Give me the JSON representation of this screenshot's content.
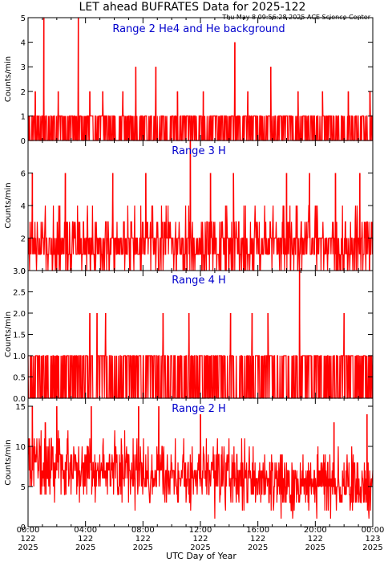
{
  "figure": {
    "title": "LET ahead BUFRATES Data for 2025-122",
    "stamp": "Thu May  8 09:56:28 2025 ACE Science Center",
    "xlabel": "UTC Day of Year",
    "line_color": "#ff0000",
    "label_color": "#0000cc",
    "x_ticks": [
      {
        "time": "00:00",
        "day": "122",
        "year": "2025"
      },
      {
        "time": "04:00",
        "day": "122",
        "year": "2025"
      },
      {
        "time": "08:00",
        "day": "122",
        "year": "2025"
      },
      {
        "time": "12:00",
        "day": "122",
        "year": "2025"
      },
      {
        "time": "16:00",
        "day": "122",
        "year": "2025"
      },
      {
        "time": "20:00",
        "day": "122",
        "year": "2025"
      },
      {
        "time": "00:00",
        "day": "123",
        "year": "2025"
      }
    ]
  },
  "chart_data": [
    {
      "type": "line",
      "panel_label": "Range 2 He4 and He background",
      "ylabel": "Counts/min",
      "ylim": [
        0,
        5
      ],
      "yticks": [
        "0",
        "1",
        "2",
        "3",
        "4",
        "5"
      ],
      "x_unit": "hours from 2025-122 00:00 UTC",
      "xlim": [
        0,
        24
      ],
      "baseline": 1,
      "spikes": [
        [
          1.1,
          5
        ],
        [
          3.5,
          5
        ],
        [
          14.4,
          4
        ],
        [
          7.5,
          3
        ],
        [
          8.9,
          3
        ],
        [
          16.9,
          3
        ],
        [
          0.5,
          2
        ],
        [
          2.1,
          2
        ],
        [
          4.3,
          2
        ],
        [
          5.2,
          2
        ],
        [
          6.6,
          2
        ],
        [
          10.4,
          2
        ],
        [
          12.2,
          2
        ],
        [
          15.3,
          2
        ],
        [
          18.8,
          2
        ],
        [
          20.5,
          2
        ],
        [
          22.3,
          2
        ],
        [
          23.8,
          2
        ]
      ]
    },
    {
      "type": "line",
      "panel_label": "Range 3 H",
      "ylabel": "Counts/min",
      "ylim": [
        0,
        8
      ],
      "yticks": [
        "0",
        "2",
        "4",
        "6"
      ],
      "x_unit": "hours from 2025-122 00:00 UTC",
      "xlim": [
        0,
        24
      ],
      "baseline": 2,
      "spikes": [
        [
          11.3,
          8
        ],
        [
          0.3,
          6
        ],
        [
          2.6,
          6
        ],
        [
          5.9,
          6
        ],
        [
          8.2,
          6
        ],
        [
          12.7,
          6
        ],
        [
          14.3,
          6
        ],
        [
          18.0,
          6
        ],
        [
          19.6,
          6
        ],
        [
          21.4,
          6
        ],
        [
          23.1,
          6
        ]
      ]
    },
    {
      "type": "line",
      "panel_label": "Range 4 H",
      "ylabel": "Counts/min",
      "ylim": [
        0,
        3
      ],
      "yticks": [
        "0.0",
        "0.5",
        "1.0",
        "1.5",
        "2.0",
        "2.5",
        "3.0"
      ],
      "x_unit": "hours from 2025-122 00:00 UTC",
      "xlim": [
        0,
        24
      ],
      "baseline": 1,
      "spikes": [
        [
          18.9,
          3
        ],
        [
          4.3,
          2
        ],
        [
          4.8,
          2
        ],
        [
          5.4,
          2
        ],
        [
          9.4,
          2
        ],
        [
          11.2,
          2
        ],
        [
          14.1,
          2
        ],
        [
          15.6,
          2
        ],
        [
          16.7,
          2
        ],
        [
          22.0,
          2
        ]
      ]
    },
    {
      "type": "line",
      "panel_label": "Range 2 H",
      "ylabel": "Counts/min",
      "ylim": [
        0,
        16
      ],
      "yticks": [
        "0",
        "5",
        "10",
        "15"
      ],
      "x_unit": "hours from 2025-122 00:00 UTC",
      "xlim": [
        0,
        24
      ],
      "baseline": 7,
      "spikes": [
        [
          0.3,
          15
        ],
        [
          2.0,
          15
        ],
        [
          4.4,
          15
        ],
        [
          7.7,
          15
        ],
        [
          9.1,
          15
        ],
        [
          12.0,
          14
        ],
        [
          21.3,
          13
        ],
        [
          23.6,
          14
        ],
        [
          1.2,
          13
        ]
      ]
    }
  ]
}
